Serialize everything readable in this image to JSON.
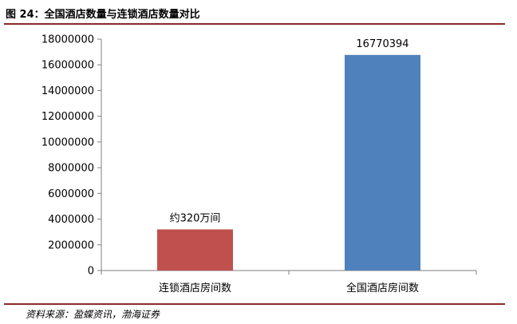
{
  "header": {
    "title": "图 24：全国酒店数量与连锁酒店数量对比"
  },
  "footer": {
    "source": "资料来源：盈蝶资讯，渤海证券"
  },
  "chart_data": {
    "type": "bar",
    "categories": [
      "连锁酒店房间数",
      "全国酒店房间数"
    ],
    "values": [
      3200000,
      16770394
    ],
    "data_labels": [
      "约320万间",
      "16770394"
    ],
    "colors": [
      "#c0504d",
      "#4f81bd"
    ],
    "ylim": [
      0,
      18000000
    ],
    "yticks": [
      "0",
      "2000000",
      "4000000",
      "6000000",
      "8000000",
      "10000000",
      "12000000",
      "14000000",
      "16000000",
      "18000000"
    ],
    "grid": false,
    "legend": "none"
  }
}
